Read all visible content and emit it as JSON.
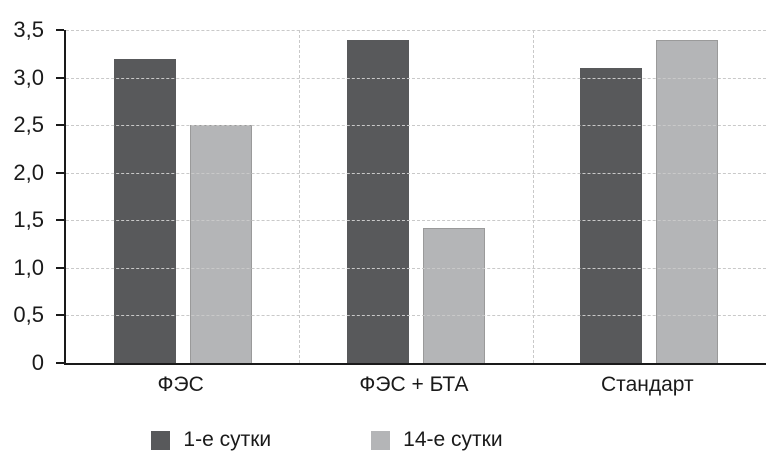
{
  "chart_data": {
    "type": "bar",
    "categories": [
      "ФЭС",
      "ФЭС + БТА",
      "Стандарт"
    ],
    "series": [
      {
        "name": "1-е сутки",
        "color": "#58595b",
        "values": [
          3.2,
          3.4,
          3.1
        ]
      },
      {
        "name": "14-е сутки",
        "color": "#b4b5b7",
        "values": [
          2.5,
          1.42,
          3.4
        ]
      }
    ],
    "title": "",
    "xlabel": "",
    "ylabel": "",
    "ylim": [
      0,
      3.5
    ],
    "ytick_step": 0.5,
    "ytick_labels": [
      "0",
      "0,5",
      "1,0",
      "1,5",
      "2,0",
      "2,5",
      "3,0",
      "3,5"
    ],
    "grid": "dashed horizontal lines at each y tick; dashed vertical lines between category groups",
    "legend_position": "bottom",
    "axis_color": "#1a1a1a",
    "gridline_color": "#c9c9c9"
  }
}
